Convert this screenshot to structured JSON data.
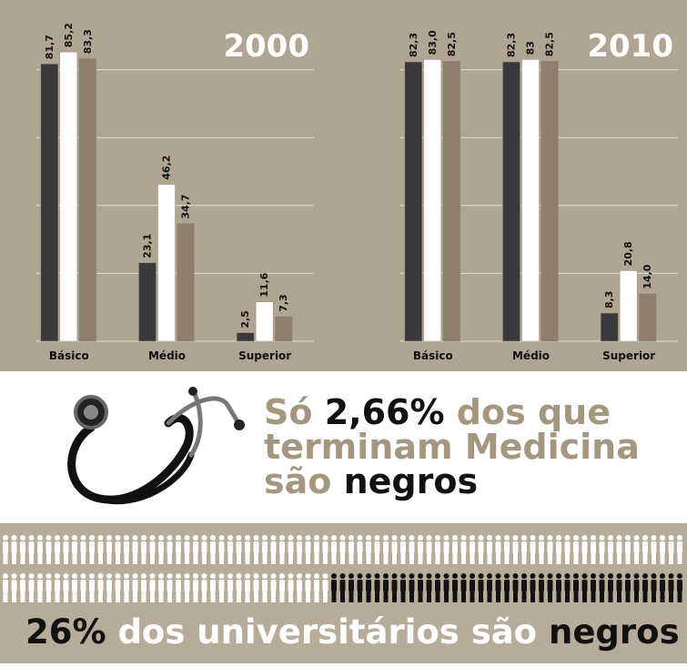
{
  "chart_data": [
    {
      "type": "bar",
      "title": "2000",
      "categories": [
        "Básico",
        "Médio",
        "Superior"
      ],
      "series": [
        {
          "color": "#3a3a3c",
          "values": [
            81.7,
            23.1,
            2.5
          ],
          "value_labels": [
            "81,7",
            "23,1",
            "2,5"
          ]
        },
        {
          "color": "#ffffff",
          "values": [
            85.2,
            46.2,
            11.6
          ],
          "value_labels": [
            "85,2",
            "46,2",
            "11,6"
          ]
        },
        {
          "color": "#8c7f6b",
          "values": [
            83.3,
            34.7,
            7.3
          ],
          "value_labels": [
            "83,3",
            "34,7",
            "7,3"
          ]
        }
      ],
      "ylim": [
        0,
        100
      ],
      "yticks": [
        0,
        20,
        40,
        60,
        80
      ],
      "grid": true
    },
    {
      "type": "bar",
      "title": "2010",
      "categories": [
        "Básico",
        "Médio",
        "Superior"
      ],
      "series": [
        {
          "color": "#3a3a3c",
          "values": [
            82.3,
            82.3,
            8.3
          ],
          "value_labels": [
            "82,3",
            "82,3",
            "8,3"
          ]
        },
        {
          "color": "#ffffff",
          "values": [
            83.0,
            83,
            20.8
          ],
          "value_labels": [
            "83,0",
            "83",
            "20,8"
          ]
        },
        {
          "color": "#8c7f6b",
          "values": [
            82.5,
            82.5,
            14.0
          ],
          "value_labels": [
            "82,5",
            "82,5",
            "14,0"
          ]
        }
      ],
      "ylim": [
        0,
        100
      ],
      "yticks": [
        0,
        20,
        40,
        60,
        80
      ],
      "grid": true
    }
  ],
  "medicine_text": [
    [
      "Só ",
      "2,66%",
      " dos que"
    ],
    [
      "terminam Medicina"
    ],
    [
      "são ",
      "negros"
    ]
  ],
  "university_text": [
    "26%",
    " dos universitários são ",
    "negros"
  ]
}
